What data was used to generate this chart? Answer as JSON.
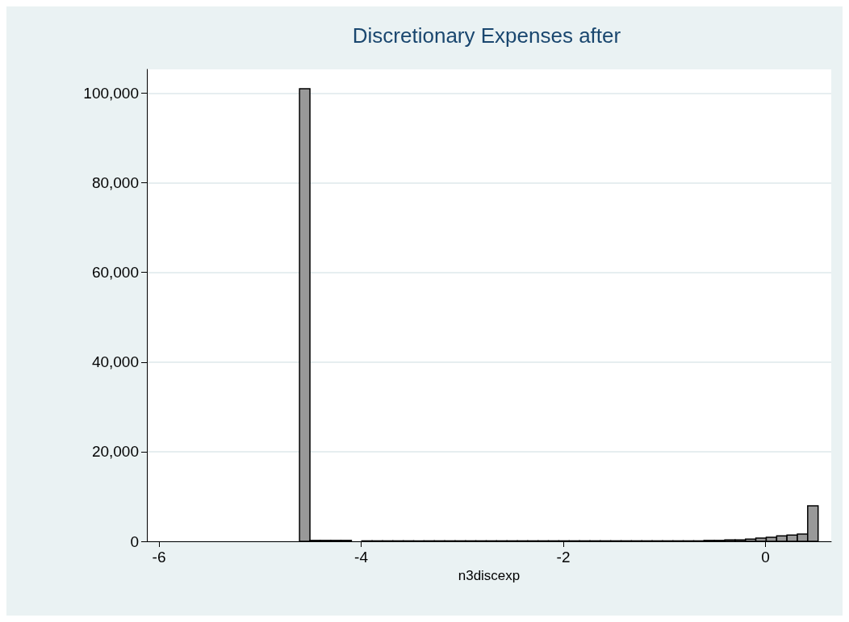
{
  "chart_data": {
    "type": "histogram",
    "title": "Discretionary Expenses after",
    "xlabel": "n3discexp",
    "bins": [
      -4.61,
      -4.507,
      -4.405,
      -4.302,
      -4.2,
      -4.097,
      -3.994,
      -3.892,
      -3.789,
      -3.687,
      -3.584,
      -3.481,
      -3.379,
      -3.276,
      -3.174,
      -3.071,
      -2.968,
      -2.866,
      -2.763,
      -2.661,
      -2.558,
      -2.455,
      -2.353,
      -2.25,
      -2.148,
      -2.045,
      -1.942,
      -1.84,
      -1.737,
      -1.635,
      -1.532,
      -1.429,
      -1.327,
      -1.224,
      -1.122,
      -1.019,
      -0.916,
      -0.814,
      -0.711,
      -0.609,
      -0.506,
      -0.403,
      -0.301,
      -0.198,
      -0.096,
      0.007,
      0.11,
      0.212,
      0.315,
      0.417,
      0.52
    ],
    "values": [
      101000,
      200,
      200,
      200,
      200,
      0,
      100,
      100,
      100,
      100,
      100,
      100,
      100,
      100,
      100,
      100,
      100,
      100,
      100,
      100,
      100,
      100,
      100,
      100,
      100,
      100,
      100,
      100,
      100,
      100,
      100,
      100,
      100,
      100,
      100,
      100,
      100,
      100,
      100,
      200,
      200,
      300,
      300,
      500,
      700,
      900,
      1200,
      1400,
      1600,
      7900
    ],
    "color": "#999999",
    "xlim": [
      -6.12,
      0.65
    ],
    "xticks": [
      -6,
      -4,
      -2,
      0
    ],
    "ylim": [
      0,
      105300
    ],
    "yticks": [
      {
        "value": 0,
        "label": "0"
      },
      {
        "value": 20000,
        "label": "20,000"
      },
      {
        "value": 40000,
        "label": "40,000"
      },
      {
        "value": 60000,
        "label": "60,000"
      },
      {
        "value": 80000,
        "label": "80,000"
      },
      {
        "value": 100000,
        "label": "100,000"
      }
    ],
    "grid": "y"
  }
}
